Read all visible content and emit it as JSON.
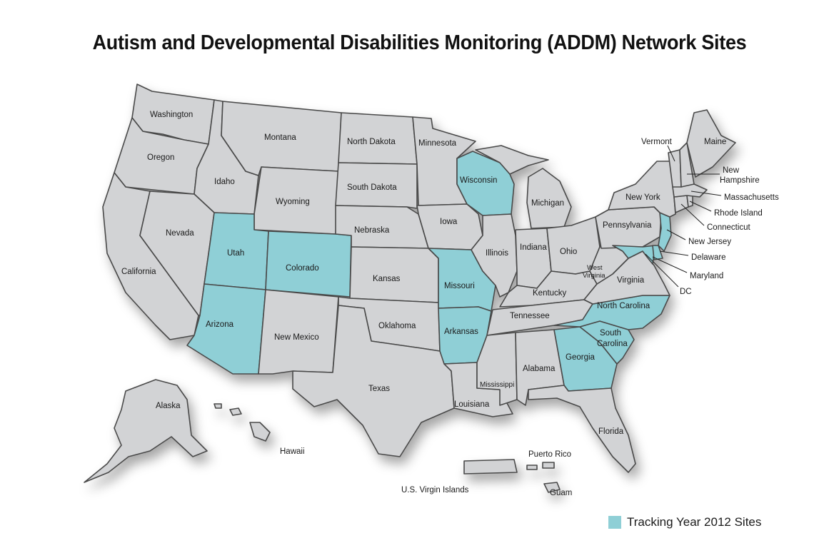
{
  "title": "Autism and Developmental Disabilities Monitoring (ADDM) Network Sites",
  "colors": {
    "site": "#8fcfd6",
    "other": "#d2d3d5",
    "border": "#4a4a4a"
  },
  "legend": {
    "label": "Tracking Year 2012 Sites"
  },
  "states": {
    "washington": "Washington",
    "oregon": "Oregon",
    "california": "California",
    "idaho": "Idaho",
    "nevada": "Nevada",
    "montana": "Montana",
    "wyoming": "Wyoming",
    "utah": "Utah",
    "colorado": "Colorado",
    "arizona": "Arizona",
    "new_mexico": "New Mexico",
    "north_dakota": "North Dakota",
    "south_dakota": "South Dakota",
    "nebraska": "Nebraska",
    "kansas": "Kansas",
    "oklahoma": "Oklahoma",
    "texas": "Texas",
    "minnesota": "Minnesota",
    "iowa": "Iowa",
    "missouri": "Missouri",
    "arkansas": "Arkansas",
    "louisiana": "Louisiana",
    "wisconsin": "Wisconsin",
    "illinois": "Illinois",
    "michigan": "Michigan",
    "indiana": "Indiana",
    "ohio": "Ohio",
    "kentucky": "Kentucky",
    "tennessee": "Tennessee",
    "mississippi": "Mississippi",
    "alabama": "Alabama",
    "georgia": "Georgia",
    "florida": "Florida",
    "south_carolina_1": "South",
    "south_carolina_2": "Carolina",
    "north_carolina": "North Carolina",
    "virginia": "Virginia",
    "west_virginia_1": "West",
    "west_virginia_2": "Virginia",
    "pennsylvania": "Pennsylvania",
    "new_york": "New York",
    "vermont": "Vermont",
    "maine": "Maine",
    "new_hampshire_1": "New",
    "new_hampshire_2": "Hampshire",
    "massachusetts": "Massachusetts",
    "rhode_island": "Rhode Island",
    "connecticut": "Connecticut",
    "new_jersey": "New Jersey",
    "delaware": "Delaware",
    "maryland": "Maryland",
    "dc": "DC",
    "alaska": "Alaska",
    "hawaii": "Hawaii",
    "puerto_rico": "Puerto Rico",
    "virgin_islands": "U.S. Virgin Islands",
    "guam": "Guam"
  }
}
